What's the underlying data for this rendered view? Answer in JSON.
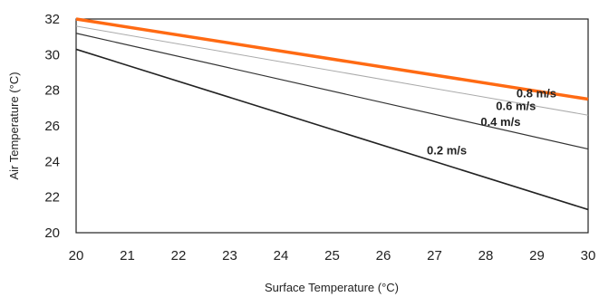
{
  "chart_data": {
    "type": "line",
    "xlabel": "Surface Temperature (°C)",
    "ylabel": "Air Temperature (°C)",
    "xlim": [
      20,
      30
    ],
    "ylim": [
      20,
      32
    ],
    "x_ticks": [
      "20",
      "21",
      "22",
      "23",
      "24",
      "25",
      "26",
      "27",
      "28",
      "29",
      "30"
    ],
    "y_ticks": [
      "20",
      "22",
      "24",
      "26",
      "28",
      "30",
      "32"
    ],
    "grid": false,
    "series": [
      {
        "name": "0.2 m/s",
        "x": [
          20,
          30
        ],
        "y": [
          30.3,
          21.3
        ],
        "color": "#222222",
        "width": 1.6
      },
      {
        "name": "0.4 m/s",
        "x": [
          20,
          30
        ],
        "y": [
          31.2,
          24.7
        ],
        "color": "#333333",
        "width": 1.2
      },
      {
        "name": "0.6 m/s",
        "x": [
          20,
          30
        ],
        "y": [
          31.6,
          26.6
        ],
        "color": "#aaaaaa",
        "width": 1.0
      },
      {
        "name": "0.8 m/s",
        "x": [
          20,
          30
        ],
        "y": [
          32.0,
          27.5
        ],
        "color": "#ff6a13",
        "width": 3.5
      }
    ],
    "series_labels": [
      {
        "text": "0.8 m/s",
        "x": 28.6,
        "y": 27.6
      },
      {
        "text": "0.6 m/s",
        "x": 28.2,
        "y": 26.9
      },
      {
        "text": "0.4 m/s",
        "x": 27.9,
        "y": 26.0
      },
      {
        "text": "0.2 m/s",
        "x": 26.85,
        "y": 24.4
      }
    ]
  }
}
